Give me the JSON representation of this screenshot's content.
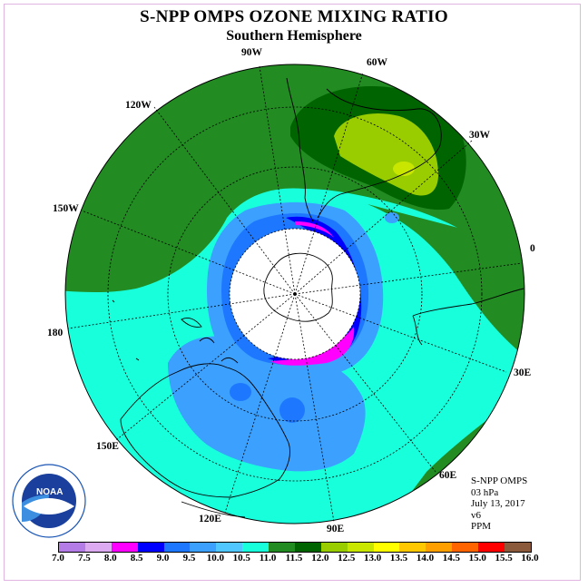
{
  "title": "S-NPP OMPS OZONE MIXING RATIO",
  "subtitle": "Southern Hemisphere",
  "longitude_labels": {
    "w90": "90W",
    "w60": "60W",
    "w30": "30W",
    "w120": "120W",
    "w150": "150W",
    "zero": "0",
    "lon180": "180",
    "e30": "30E",
    "e60": "60E",
    "e90": "90E",
    "e120": "120E",
    "e150": "150E"
  },
  "info": {
    "instrument": "S-NPP OMPS",
    "level": "03 hPa",
    "date": "July 13, 2017",
    "version": "v6",
    "units": "PPM"
  },
  "logo_text": "NOAA",
  "colorbar": {
    "ticks": [
      "7.0",
      "7.5",
      "8.0",
      "8.5",
      "9.0",
      "9.5",
      "10.0",
      "10.5",
      "11.0",
      "11.5",
      "12.0",
      "12.5",
      "13.0",
      "13.5",
      "14.0",
      "14.5",
      "15.0",
      "15.5",
      "16.0"
    ],
    "colors": [
      "#b47ce6",
      "#dcaaf0",
      "#ff00ff",
      "#0000ff",
      "#1e78ff",
      "#3ca0ff",
      "#50c8ff",
      "#18ffdc",
      "#228b22",
      "#006400",
      "#9acd00",
      "#c8e600",
      "#ffff00",
      "#ffc800",
      "#ffa000",
      "#ff6400",
      "#ff0000",
      "#8b5a3c"
    ]
  },
  "colors": {
    "field_main": "#18ffdc",
    "field_mid": "#3ca0ff",
    "field_dark_green": "#228b22",
    "field_darker_green": "#006400",
    "field_yellow_green": "#9acd00",
    "field_pink": "#ff00ff",
    "field_blue": "#0000ff",
    "field_light_blue": "#50c8ff"
  }
}
